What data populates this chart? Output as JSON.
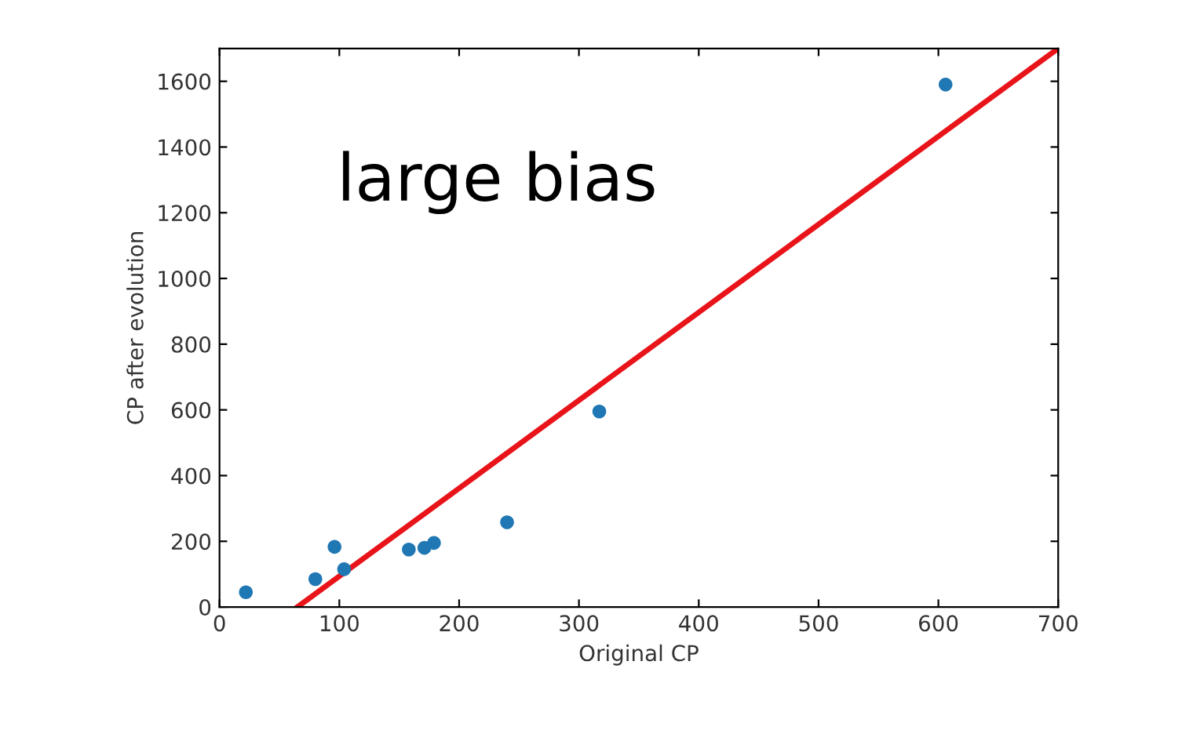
{
  "chart_data": {
    "type": "scatter",
    "xlabel": "Original CP",
    "ylabel": "CP after evolution",
    "annotations": [
      "large bias"
    ],
    "series": [
      {
        "color": "#1f77b4",
        "x": [
          22,
          80,
          96,
          104,
          158,
          171,
          179,
          240,
          317,
          606
        ],
        "values": [
          45,
          85,
          183,
          115,
          175,
          180,
          195,
          258,
          595,
          1590
        ]
      },
      {
        "type": "line",
        "color": "#e8141a",
        "x": [
          65,
          700
        ],
        "values": [
          0,
          1700
        ]
      }
    ],
    "xlim": [
      0,
      700
    ],
    "ylim": [
      0,
      1700
    ],
    "xticks": [
      0,
      100,
      200,
      300,
      400,
      500,
      600,
      700
    ],
    "yticks": [
      0,
      200,
      400,
      600,
      800,
      1000,
      1200,
      1400,
      1600
    ],
    "grid": false,
    "legend": false
  }
}
